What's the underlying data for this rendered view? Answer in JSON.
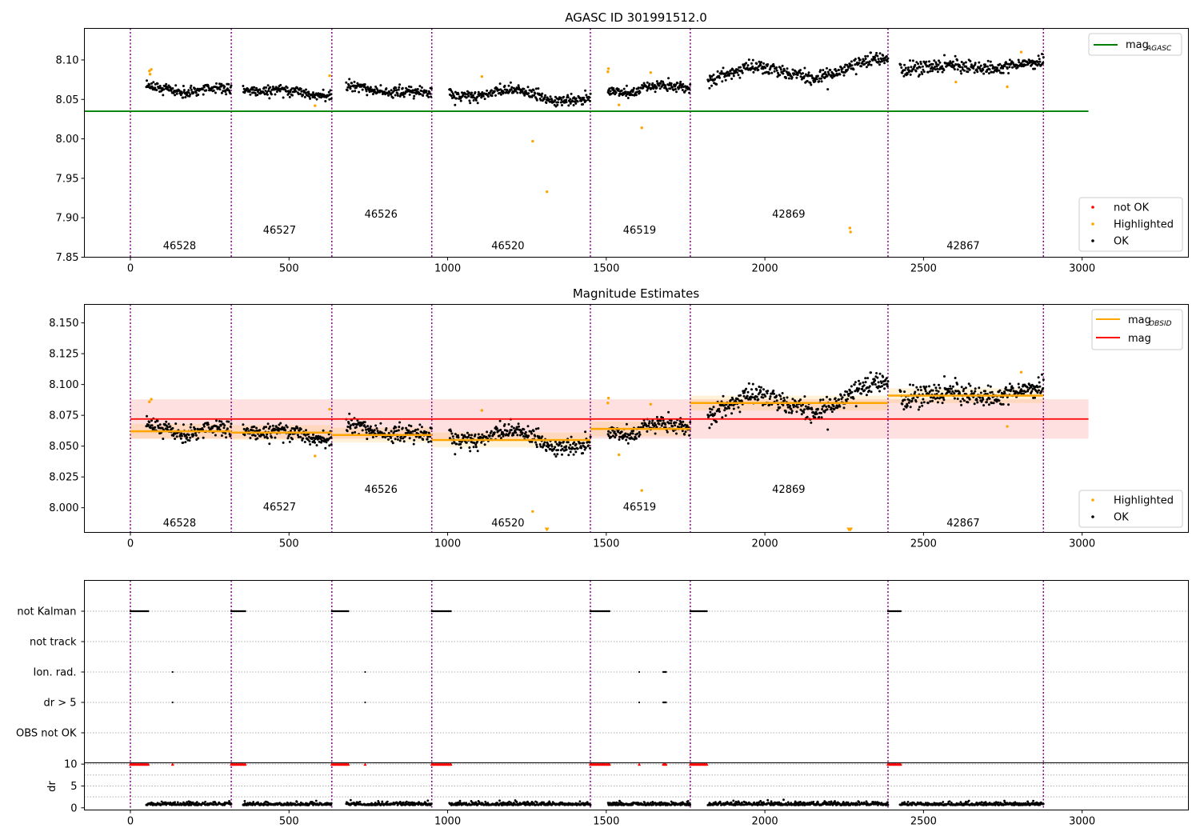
{
  "chart_data": [
    {
      "type": "scatter",
      "title": "AGASC ID 301991512.0",
      "xlim": [
        -145,
        3335
      ],
      "ylim": [
        7.85,
        8.14
      ],
      "yticks": [
        "7.85",
        "7.90",
        "7.95",
        "8.00",
        "8.05",
        "8.10"
      ],
      "xticks": [
        "0",
        "500",
        "1000",
        "1500",
        "2000",
        "2500",
        "3000"
      ],
      "hlines": [
        {
          "name": "mag_AGASC",
          "y": 8.035,
          "x": [
            -145,
            3020
          ],
          "color": "#008000"
        }
      ],
      "legend_top": [
        {
          "label": "mag",
          "sub": "AGASC",
          "color": "#008000"
        }
      ],
      "legend_bottom": [
        {
          "label": "not OK",
          "color": "#ff0000"
        },
        {
          "label": "Highlighted",
          "color": "#ffa500"
        },
        {
          "label": "OK",
          "color": "#000000"
        }
      ],
      "obsid_labels": [
        {
          "text": "46528",
          "x": 155,
          "y": 7.86
        },
        {
          "text": "46527",
          "x": 470,
          "y": 7.88
        },
        {
          "text": "46526",
          "x": 790,
          "y": 7.9
        },
        {
          "text": "46520",
          "x": 1190,
          "y": 7.86
        },
        {
          "text": "46519",
          "x": 1605,
          "y": 7.88
        },
        {
          "text": "42869",
          "x": 2075,
          "y": 7.9
        },
        {
          "text": "42867",
          "x": 2625,
          "y": 7.86
        }
      ],
      "highlighted_points": [
        {
          "x": 60,
          "y": 8.086
        },
        {
          "x": 66,
          "y": 8.088
        },
        {
          "x": 62,
          "y": 8.082
        },
        {
          "x": 582,
          "y": 8.042
        },
        {
          "x": 628,
          "y": 8.08
        },
        {
          "x": 1108,
          "y": 8.079
        },
        {
          "x": 1268,
          "y": 7.997
        },
        {
          "x": 1313,
          "y": 7.933
        },
        {
          "x": 1507,
          "y": 8.089
        },
        {
          "x": 1505,
          "y": 8.085
        },
        {
          "x": 1540,
          "y": 8.043
        },
        {
          "x": 1612,
          "y": 8.014
        },
        {
          "x": 1640,
          "y": 8.084
        },
        {
          "x": 2268,
          "y": 7.887
        },
        {
          "x": 2270,
          "y": 7.882
        },
        {
          "x": 2602,
          "y": 8.072
        },
        {
          "x": 2764,
          "y": 8.066
        },
        {
          "x": 2808,
          "y": 8.11
        }
      ]
    },
    {
      "type": "scatter",
      "title": "Magnitude Estimates",
      "xlim": [
        -145,
        3335
      ],
      "ylim": [
        7.98,
        8.165
      ],
      "yticks": [
        "8.000",
        "8.025",
        "8.050",
        "8.075",
        "8.100",
        "8.125",
        "8.150"
      ],
      "xticks": [
        "0",
        "500",
        "1000",
        "1500",
        "2000",
        "2500",
        "3000"
      ],
      "mag": {
        "y": 8.072,
        "band": [
          8.056,
          8.088
        ],
        "x": [
          0,
          3020
        ],
        "color": "#ff0000"
      },
      "mag_obsid": [
        {
          "x": [
            0,
            318
          ],
          "y": 8.062
        },
        {
          "x": [
            318,
            635
          ],
          "y": 8.061
        },
        {
          "x": [
            635,
            950
          ],
          "y": 8.059
        },
        {
          "x": [
            950,
            1450
          ],
          "y": 8.055
        },
        {
          "x": [
            1450,
            1765
          ],
          "y": 8.064
        },
        {
          "x": [
            1765,
            2388
          ],
          "y": 8.085
        },
        {
          "x": [
            2388,
            2878
          ],
          "y": 8.091
        }
      ],
      "legend_top": [
        {
          "label": "mag",
          "sub": "OBSID",
          "color": "#ffa500"
        },
        {
          "label": "mag",
          "sub": "",
          "color": "#ff0000"
        }
      ],
      "legend_bottom": [
        {
          "label": "Highlighted",
          "color": "#ffa500"
        },
        {
          "label": "OK",
          "color": "#000000"
        }
      ],
      "obsid_labels": [
        {
          "text": "46528",
          "x": 155,
          "y": 7.985
        },
        {
          "text": "46527",
          "x": 470,
          "y": 7.998
        },
        {
          "text": "46526",
          "x": 790,
          "y": 8.012
        },
        {
          "text": "46520",
          "x": 1190,
          "y": 7.985
        },
        {
          "text": "46519",
          "x": 1605,
          "y": 7.998
        },
        {
          "text": "42869",
          "x": 2075,
          "y": 8.012
        },
        {
          "text": "42867",
          "x": 2625,
          "y": 7.985
        }
      ],
      "highlighted_points": [
        {
          "x": 60,
          "y": 8.086
        },
        {
          "x": 66,
          "y": 8.088
        },
        {
          "x": 582,
          "y": 8.042
        },
        {
          "x": 628,
          "y": 8.08
        },
        {
          "x": 1108,
          "y": 8.079
        },
        {
          "x": 1268,
          "y": 7.997
        },
        {
          "x": 1507,
          "y": 8.089
        },
        {
          "x": 1505,
          "y": 8.085
        },
        {
          "x": 1540,
          "y": 8.043
        },
        {
          "x": 1612,
          "y": 8.014
        },
        {
          "x": 1640,
          "y": 8.084
        },
        {
          "x": 2764,
          "y": 8.066
        },
        {
          "x": 2808,
          "y": 8.11
        }
      ],
      "offscale_markers": [
        {
          "x": 1313
        },
        {
          "x": 2265
        },
        {
          "x": 2270
        }
      ]
    },
    {
      "type": "scatter",
      "title": "",
      "xlim": [
        -145,
        3335
      ],
      "flag_rows": [
        "not Kalman",
        "not track",
        "Ion. rad.",
        "dr > 5",
        "OBS not OK"
      ],
      "flag_points": {
        "not Kalman": [
          [
            0,
            58
          ],
          [
            318,
            362
          ],
          [
            635,
            690
          ],
          [
            950,
            1010
          ],
          [
            1450,
            1510
          ],
          [
            1765,
            1820
          ],
          [
            2388,
            2430
          ]
        ],
        "Ion. rad.": [
          [
            133
          ],
          [
            740
          ],
          [
            1604
          ],
          [
            1680,
            1690
          ]
        ],
        "dr > 5": [
          [
            133
          ],
          [
            740
          ],
          [
            1604
          ],
          [
            1680,
            1690
          ]
        ]
      },
      "dr_yticks": [
        "0",
        "5",
        "10"
      ],
      "dr_ylabel": "dr",
      "dr_ylim": [
        -0.5,
        10.3
      ],
      "xticks": [
        "0",
        "500",
        "1000",
        "1500",
        "2000",
        "2500",
        "3000"
      ]
    }
  ],
  "obsid_boundaries": [
    0,
    318,
    635,
    950,
    1450,
    1765,
    2388,
    2878
  ],
  "obs_ranges": [
    {
      "x": [
        50,
        318
      ],
      "c1": 8.062,
      "c2": 8.062,
      "amp": 0.0035,
      "noise": 0.0035
    },
    {
      "x": [
        355,
        635
      ],
      "c1": 8.063,
      "c2": 8.057,
      "amp": 0.002,
      "noise": 0.0035
    },
    {
      "x": [
        680,
        950
      ],
      "c1": 8.065,
      "c2": 8.056,
      "amp": 0.002,
      "noise": 0.0035
    },
    {
      "x": [
        1005,
        1450
      ],
      "c1": 8.06,
      "c2": 8.052,
      "amp": 0.006,
      "noise": 0.0035
    },
    {
      "x": [
        1505,
        1765
      ],
      "c1": 8.06,
      "c2": 8.067,
      "amp": 0.003,
      "noise": 0.0035
    },
    {
      "x": [
        1820,
        2388
      ],
      "c1": 8.078,
      "c2": 8.093,
      "amp": 0.009,
      "noise": 0.004
    },
    {
      "x": [
        2425,
        2878
      ],
      "c1": 8.088,
      "c2": 8.095,
      "amp": 0.003,
      "noise": 0.004
    }
  ]
}
